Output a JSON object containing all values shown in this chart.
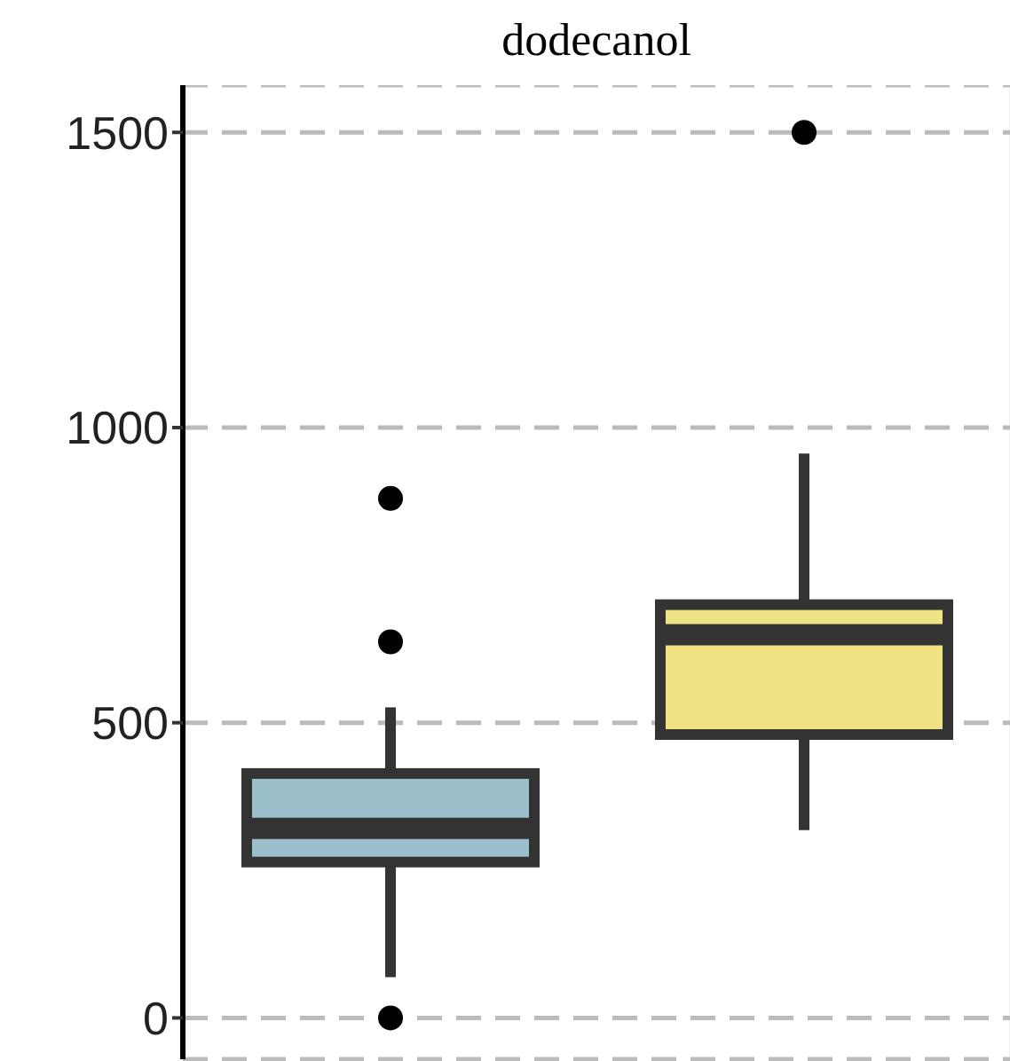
{
  "chart_data": {
    "type": "box",
    "title": "dodecanol",
    "categories": [
      null,
      null
    ],
    "boxes": [
      {
        "low": 69,
        "q1": 264,
        "median": 321,
        "q3": 414,
        "high": 526,
        "outliers": [
          0,
          637,
          880
        ]
      },
      {
        "low": 318,
        "q1": 480,
        "median": 649,
        "q3": 700,
        "high": 956,
        "outliers": [
          1500
        ]
      }
    ],
    "colors": [
      "#9bc0cc",
      "#f0e384"
    ],
    "ylim": [
      -70,
      1580
    ],
    "yticks": [
      0,
      500,
      1000,
      1500
    ],
    "grid": true,
    "tick_labels": "y"
  }
}
